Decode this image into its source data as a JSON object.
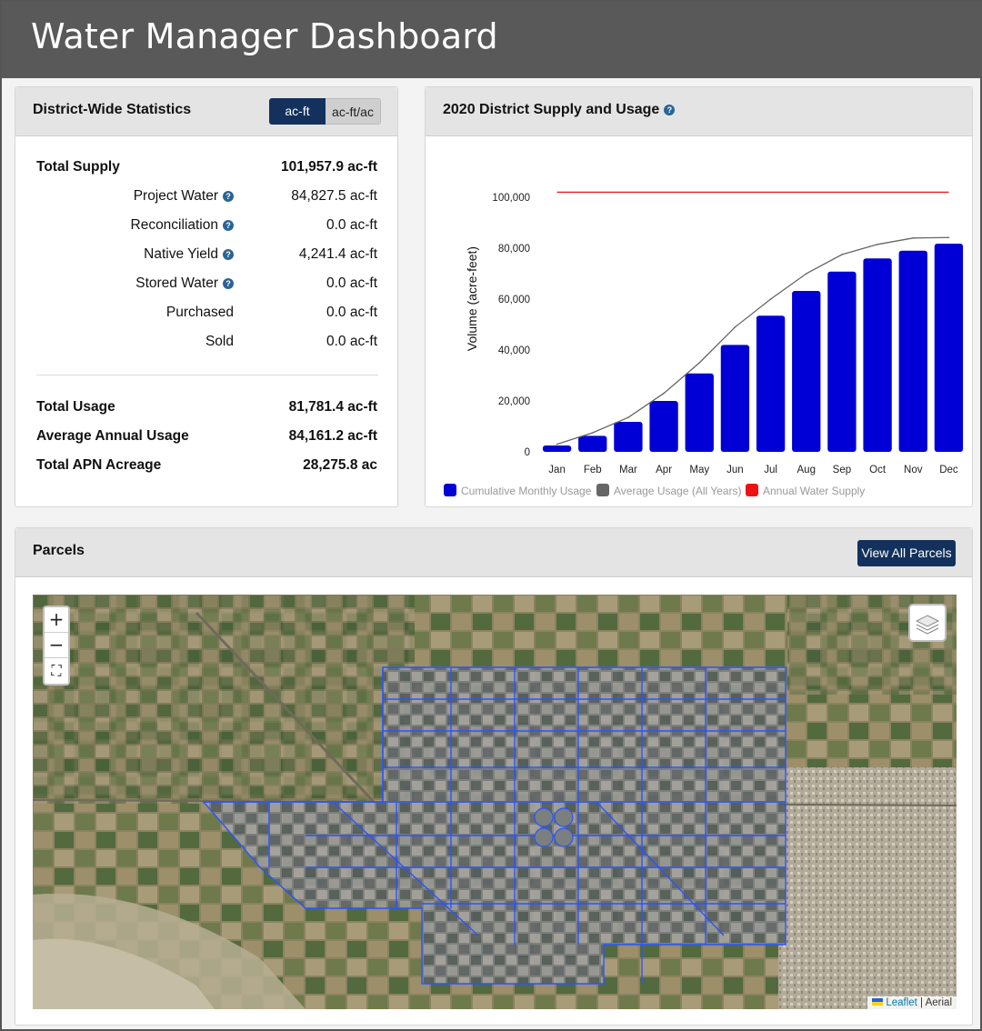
{
  "app": {
    "title": "Water Manager Dashboard"
  },
  "stats": {
    "title": "District-Wide Statistics",
    "toggle": {
      "active": "ac-ft",
      "inactive": "ac-ft/ac"
    },
    "supply_rows": [
      {
        "label": "Total Supply",
        "value": "101,957.9 ac-ft",
        "bold": true,
        "help": false
      },
      {
        "label": "Project Water",
        "value": "84,827.5 ac-ft",
        "bold": false,
        "help": true
      },
      {
        "label": "Reconciliation",
        "value": "0.0 ac-ft",
        "bold": false,
        "help": true
      },
      {
        "label": "Native Yield",
        "value": "4,241.4 ac-ft",
        "bold": false,
        "help": true
      },
      {
        "label": "Stored Water",
        "value": "0.0 ac-ft",
        "bold": false,
        "help": true
      },
      {
        "label": "Purchased",
        "value": "0.0 ac-ft",
        "bold": false,
        "help": false
      },
      {
        "label": "Sold",
        "value": "0.0 ac-ft",
        "bold": false,
        "help": false
      }
    ],
    "usage_rows": [
      {
        "label": "Total Usage",
        "value": "81,781.4 ac-ft"
      },
      {
        "label": "Average Annual Usage",
        "value": "84,161.2 ac-ft"
      },
      {
        "label": "Total APN Acreage",
        "value": "28,275.8 ac"
      }
    ]
  },
  "chart_panel": {
    "title": "2020 District Supply and Usage"
  },
  "chart_data": {
    "type": "bar",
    "title": "",
    "xlabel": "",
    "ylabel": "Volume (acre-feet)",
    "categories": [
      "Jan",
      "Feb",
      "Mar",
      "Apr",
      "May",
      "Jun",
      "Jul",
      "Aug",
      "Sep",
      "Oct",
      "Nov",
      "Dec"
    ],
    "ylim": [
      0,
      100000
    ],
    "yticks": [
      0,
      20000,
      40000,
      60000,
      80000,
      100000
    ],
    "ytick_labels": [
      "0",
      "20,000",
      "40,000",
      "60,000",
      "80,000",
      "100,000"
    ],
    "grid": false,
    "legend_position": "bottom",
    "series": [
      {
        "name": "Cumulative Monthly Usage",
        "kind": "bar",
        "color": "#0000d6",
        "values": [
          2500,
          6300,
          11800,
          20000,
          30800,
          42000,
          53500,
          63200,
          70800,
          76000,
          79000,
          81800
        ]
      },
      {
        "name": "Average Usage (All Years)",
        "kind": "line",
        "color": "#666666",
        "values": [
          3000,
          7500,
          13500,
          23000,
          35000,
          49000,
          60000,
          70000,
          77500,
          81500,
          84000,
          84200
        ]
      },
      {
        "name": "Annual Water Supply",
        "kind": "line",
        "color": "#ee1111",
        "values": [
          102000,
          102000,
          102000,
          102000,
          102000,
          102000,
          102000,
          102000,
          102000,
          102000,
          102000,
          102000
        ]
      }
    ]
  },
  "parcels": {
    "title": "Parcels",
    "view_all_label": "View All Parcels",
    "map": {
      "zoom_in": "+",
      "zoom_out": "−",
      "fullscreen": "⛶",
      "attribution_link": "Leaflet",
      "attribution_sep": " | ",
      "attribution_layer": "Aerial"
    }
  }
}
